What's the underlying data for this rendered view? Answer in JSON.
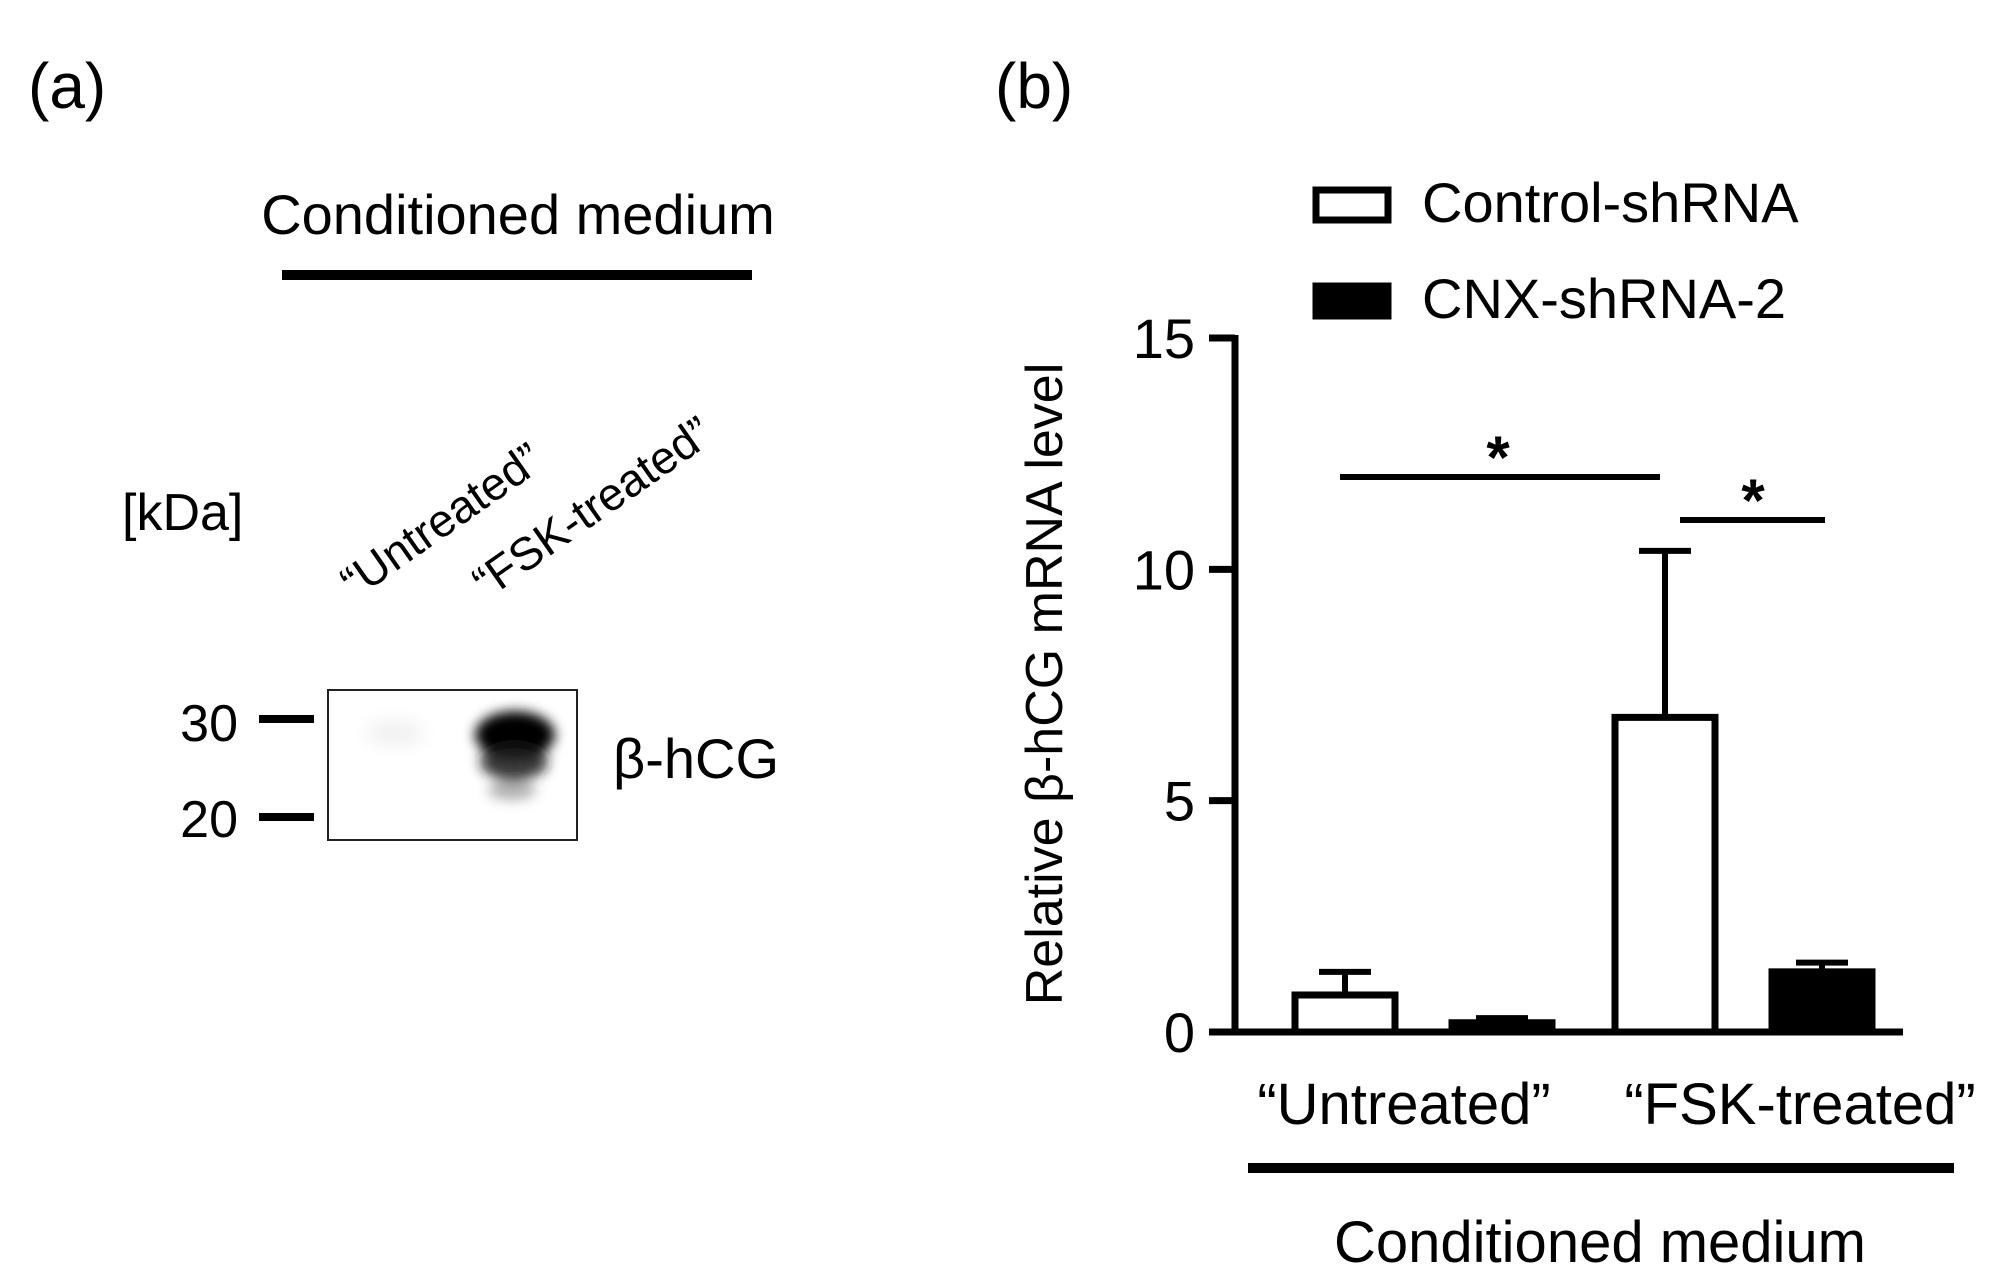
{
  "panel_a": {
    "label": "(a)",
    "group_label": "Conditioned medium",
    "lanes": [
      "“Untreated”",
      "“FSK-treated”"
    ],
    "marker_unit": "[kDa]",
    "markers": [
      {
        "label": "30",
        "kda": 30
      },
      {
        "label": "20",
        "kda": 20
      }
    ],
    "band_label": "β-hCG",
    "band_intensity": [
      0.06,
      1.0
    ]
  },
  "panel_b": {
    "label": "(b)",
    "group_label": "Conditioned medium",
    "significance_marks": [
      "*",
      "*"
    ]
  },
  "chart_data": {
    "type": "bar",
    "title": "",
    "xlabel": "",
    "ylabel": "Relative β-hCG mRNA level",
    "categories": [
      "“Untreated”",
      "“FSK-treated”"
    ],
    "ylim": [
      0,
      15
    ],
    "yticks": [
      0,
      5,
      10,
      15
    ],
    "ytick_labels": [
      "0",
      "5",
      "10",
      "15"
    ],
    "legend_position": "top-right",
    "series": [
      {
        "name": "Control-shRNA",
        "fill": "#ffffff",
        "values": [
          0.8,
          6.8
        ],
        "error": [
          0.5,
          3.6
        ]
      },
      {
        "name": "CNX-shRNA-2",
        "fill": "#000000",
        "values": [
          0.2,
          1.3
        ],
        "error": [
          0.1,
          0.2
        ]
      }
    ],
    "significance": [
      {
        "label": "*",
        "from": "Control-shRNA / “Untreated”",
        "to": "Control-shRNA / “FSK-treated”"
      },
      {
        "label": "*",
        "from": "Control-shRNA / “FSK-treated”",
        "to": "CNX-shRNA-2 / “FSK-treated”"
      }
    ]
  }
}
